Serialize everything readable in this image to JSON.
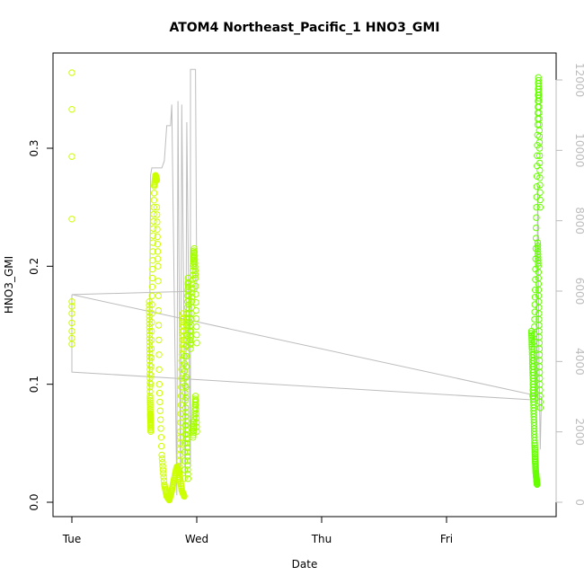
{
  "chart_data": {
    "type": "scatter",
    "title": "ATOM4 Northeast_Pacific_1 HNO3_GMI",
    "xlabel": "Date",
    "ylabel": "HNO3_GMI",
    "x_ticks": [
      "Tue",
      "Wed",
      "Thu",
      "Fri"
    ],
    "y_ticks": [
      "0.0",
      "0.1",
      "0.2",
      "0.3"
    ],
    "y_right_ticks": [
      "0",
      "2000",
      "4000",
      "6000",
      "8000",
      "10000",
      "12000"
    ],
    "xlim_days": [
      0,
      3.81
    ],
    "ylim": [
      -0.012,
      0.385
    ],
    "y_right_lim": [
      -300,
      12700
    ],
    "grid": false,
    "legend": "none",
    "colors": {
      "points_left": "#ccff00",
      "points_mid": "#a6ff00",
      "points_right": "#66ff00",
      "altitude_line": "#bdbdbd"
    },
    "series": [
      {
        "type": "points",
        "points": [
          [
            0.0,
            0.364
          ],
          [
            0.0,
            0.333
          ],
          [
            0.0,
            0.293
          ],
          [
            0.0,
            0.24
          ],
          [
            0.0,
            0.17
          ],
          [
            0.0,
            0.166
          ],
          [
            0.0,
            0.16
          ],
          [
            0.0,
            0.152
          ],
          [
            0.0,
            0.145
          ],
          [
            0.0,
            0.139
          ],
          [
            0.0,
            0.134
          ]
        ]
      },
      {
        "type": "segments",
        "segments": [
          {
            "x": [
              0.62,
              0.622,
              0.624,
              0.626,
              0.628,
              0.63,
              0.632
            ],
            "y": [
              0.17,
              0.145,
              0.12,
              0.09,
              0.075,
              0.07,
              0.06
            ]
          },
          {
            "x": [
              0.632,
              0.64,
              0.65,
              0.66,
              0.67,
              0.68
            ],
            "y": [
              0.1,
              0.16,
              0.22,
              0.268,
              0.277,
              0.273
            ]
          },
          {
            "x": [
              0.68,
              0.69,
              0.7,
              0.72,
              0.74,
              0.76,
              0.78
            ],
            "y": [
              0.25,
              0.2,
              0.1,
              0.04,
              0.015,
              0.005,
              0.002
            ]
          },
          {
            "x": [
              0.78,
              0.8,
              0.82,
              0.84,
              0.86,
              0.88,
              0.9
            ],
            "y": [
              0.002,
              0.01,
              0.02,
              0.03,
              0.025,
              0.01,
              0.005
            ]
          },
          {
            "x": [
              0.86,
              0.87,
              0.88,
              0.89,
              0.9,
              0.91,
              0.92,
              0.93
            ],
            "y": [
              0.02,
              0.06,
              0.12,
              0.16,
              0.13,
              0.08,
              0.05,
              0.02
            ]
          },
          {
            "x": [
              0.9,
              0.91,
              0.92,
              0.93,
              0.94,
              0.95,
              0.96,
              0.97,
              0.98,
              0.99,
              1.0
            ],
            "y": [
              0.02,
              0.08,
              0.15,
              0.19,
              0.16,
              0.13,
              0.17,
              0.2,
              0.215,
              0.19,
              0.135
            ]
          },
          {
            "x": [
              0.97,
              0.98,
              0.99,
              1.0
            ],
            "y": [
              0.055,
              0.07,
              0.09,
              0.06
            ]
          }
        ]
      },
      {
        "type": "segments",
        "segments": [
          {
            "x": [
              3.68,
              3.685,
              3.69,
              3.695,
              3.7,
              3.705,
              3.71,
              3.715,
              3.72,
              3.725
            ],
            "y": [
              0.145,
              0.13,
              0.11,
              0.09,
              0.07,
              0.05,
              0.035,
              0.025,
              0.02,
              0.015
            ]
          },
          {
            "x": [
              3.69,
              3.7,
              3.71,
              3.72,
              3.73,
              3.735,
              3.74,
              3.745,
              3.75
            ],
            "y": [
              0.09,
              0.13,
              0.18,
              0.25,
              0.32,
              0.36,
              0.34,
              0.3,
              0.25
            ]
          },
          {
            "x": [
              3.73,
              3.735,
              3.74,
              3.745,
              3.75
            ],
            "y": [
              0.22,
              0.2,
              0.16,
              0.12,
              0.08
            ]
          }
        ]
      },
      {
        "type": "line",
        "name": "",
        "axis": "right",
        "points": [
          [
            0.0,
            5900
          ],
          [
            0.0,
            3700
          ],
          [
            0.0,
            3700
          ],
          [
            3.73,
            2900
          ],
          [
            3.73,
            2900
          ],
          [
            3.72,
            5800
          ],
          [
            3.72,
            3000
          ],
          [
            3.73,
            9000
          ],
          [
            3.74,
            4000
          ],
          [
            3.75,
            1500
          ],
          [
            3.76,
            3000
          ],
          [
            0.0,
            5900
          ],
          [
            1.0,
            6000
          ],
          [
            0.99,
            12300
          ],
          [
            0.95,
            12300
          ],
          [
            0.95,
            1000
          ],
          [
            0.92,
            10800
          ],
          [
            0.91,
            600
          ],
          [
            0.88,
            11300
          ],
          [
            0.87,
            200
          ],
          [
            0.85,
            11400
          ],
          [
            0.84,
            200
          ],
          [
            0.8,
            11300
          ],
          [
            0.79,
            10700
          ],
          [
            0.76,
            10700
          ],
          [
            0.74,
            9700
          ],
          [
            0.72,
            9500
          ],
          [
            0.64,
            9500
          ],
          [
            0.63,
            9300
          ],
          [
            0.62,
            3000
          ]
        ]
      }
    ]
  }
}
